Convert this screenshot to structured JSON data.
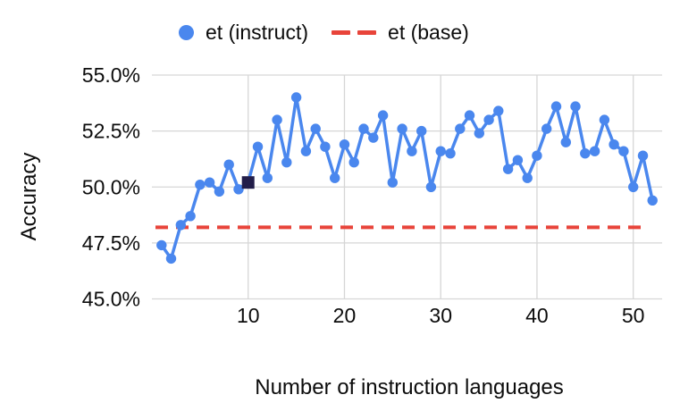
{
  "colors": {
    "series_blue": "#4a87ee",
    "baseline_red": "#e8443a",
    "highlight_square": "#221d49",
    "gridline": "#d6d6d6",
    "text": "#0c0c0c"
  },
  "chart_data": {
    "type": "line",
    "title": "",
    "xlabel": "Number of instruction languages",
    "ylabel": "Accuracy",
    "xlim": [
      0,
      53
    ],
    "ylim": [
      45,
      55
    ],
    "grid": "both",
    "legend_position": "top",
    "x_ticks": [
      10,
      20,
      30,
      40,
      50
    ],
    "y_ticks": [
      {
        "value": 55.0,
        "label": "55.0%"
      },
      {
        "value": 52.5,
        "label": "52.5%"
      },
      {
        "value": 50.0,
        "label": "50.0%"
      },
      {
        "value": 47.5,
        "label": "47.5%"
      },
      {
        "value": 45.0,
        "label": "45.0%"
      }
    ],
    "x": [
      1,
      2,
      3,
      4,
      5,
      6,
      7,
      8,
      9,
      10,
      11,
      12,
      13,
      14,
      15,
      16,
      17,
      18,
      19,
      20,
      21,
      22,
      23,
      24,
      25,
      26,
      27,
      28,
      29,
      30,
      31,
      32,
      33,
      34,
      35,
      36,
      37,
      38,
      39,
      40,
      41,
      42,
      43,
      44,
      45,
      46,
      47,
      48,
      49,
      50,
      51,
      52
    ],
    "series": [
      {
        "name": "et (instruct)",
        "type": "line-markers",
        "values": [
          47.4,
          46.8,
          48.3,
          48.7,
          50.1,
          50.2,
          49.8,
          51.0,
          49.9,
          50.2,
          51.8,
          50.4,
          53.0,
          51.1,
          54.0,
          51.6,
          52.6,
          51.8,
          50.4,
          51.9,
          51.1,
          52.6,
          52.2,
          53.2,
          50.2,
          52.6,
          51.6,
          52.5,
          50.0,
          51.6,
          51.5,
          52.6,
          53.2,
          52.4,
          53.0,
          53.4,
          50.8,
          51.2,
          50.4,
          51.4,
          52.6,
          53.6,
          52.0,
          53.6,
          51.5,
          51.6,
          53.0,
          51.9,
          51.6,
          50.0,
          51.4,
          49.4
        ]
      },
      {
        "name": "et (base)",
        "type": "horizontal-dashed",
        "value": 48.2
      }
    ],
    "highlight_point": {
      "x": 10,
      "value": 50.2,
      "shape": "square"
    }
  }
}
